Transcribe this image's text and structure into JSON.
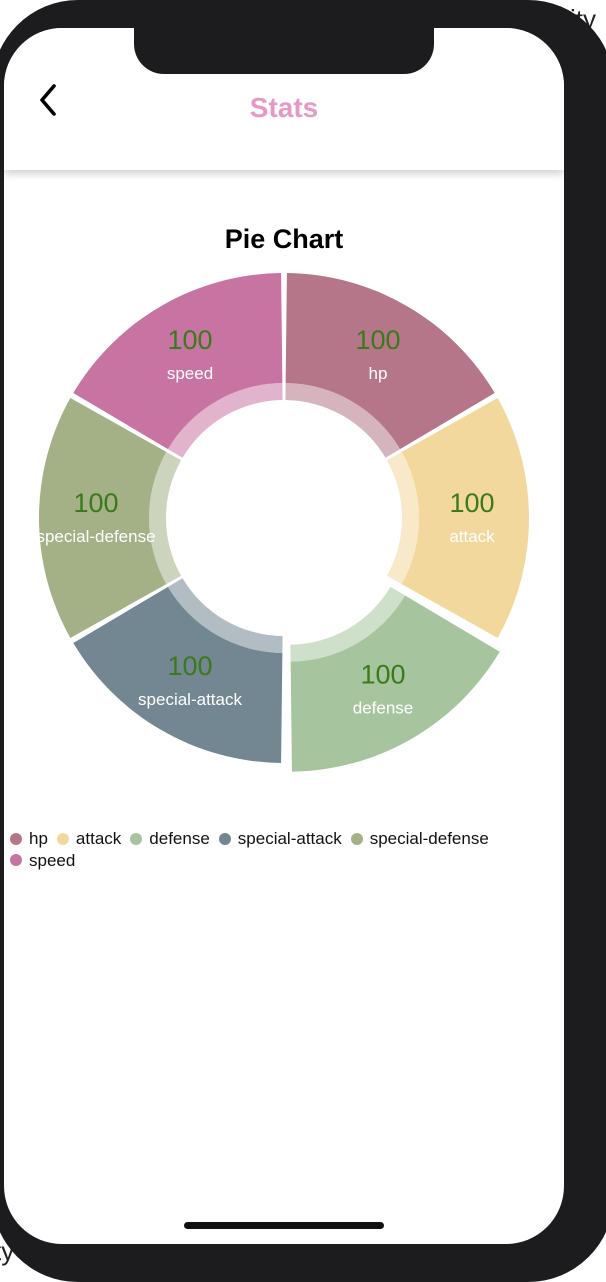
{
  "header": {
    "title": "Stats"
  },
  "background": {
    "top_fragment": "rity",
    "bottom_fragment": "ty"
  },
  "chart_data": {
    "type": "pie",
    "title": "Pie Chart",
    "categories": [
      "hp",
      "attack",
      "defense",
      "special-attack",
      "special-defense",
      "speed"
    ],
    "values": [
      100,
      100,
      100,
      100,
      100,
      100
    ],
    "colors": [
      "#b57689",
      "#f2d89c",
      "#a6c59f",
      "#728792",
      "#a4b086",
      "#c874a3"
    ],
    "value_color": "#3a7a1a",
    "label_color": "#ffffff",
    "highlighted": "defense",
    "legend_position": "bottom-left"
  }
}
